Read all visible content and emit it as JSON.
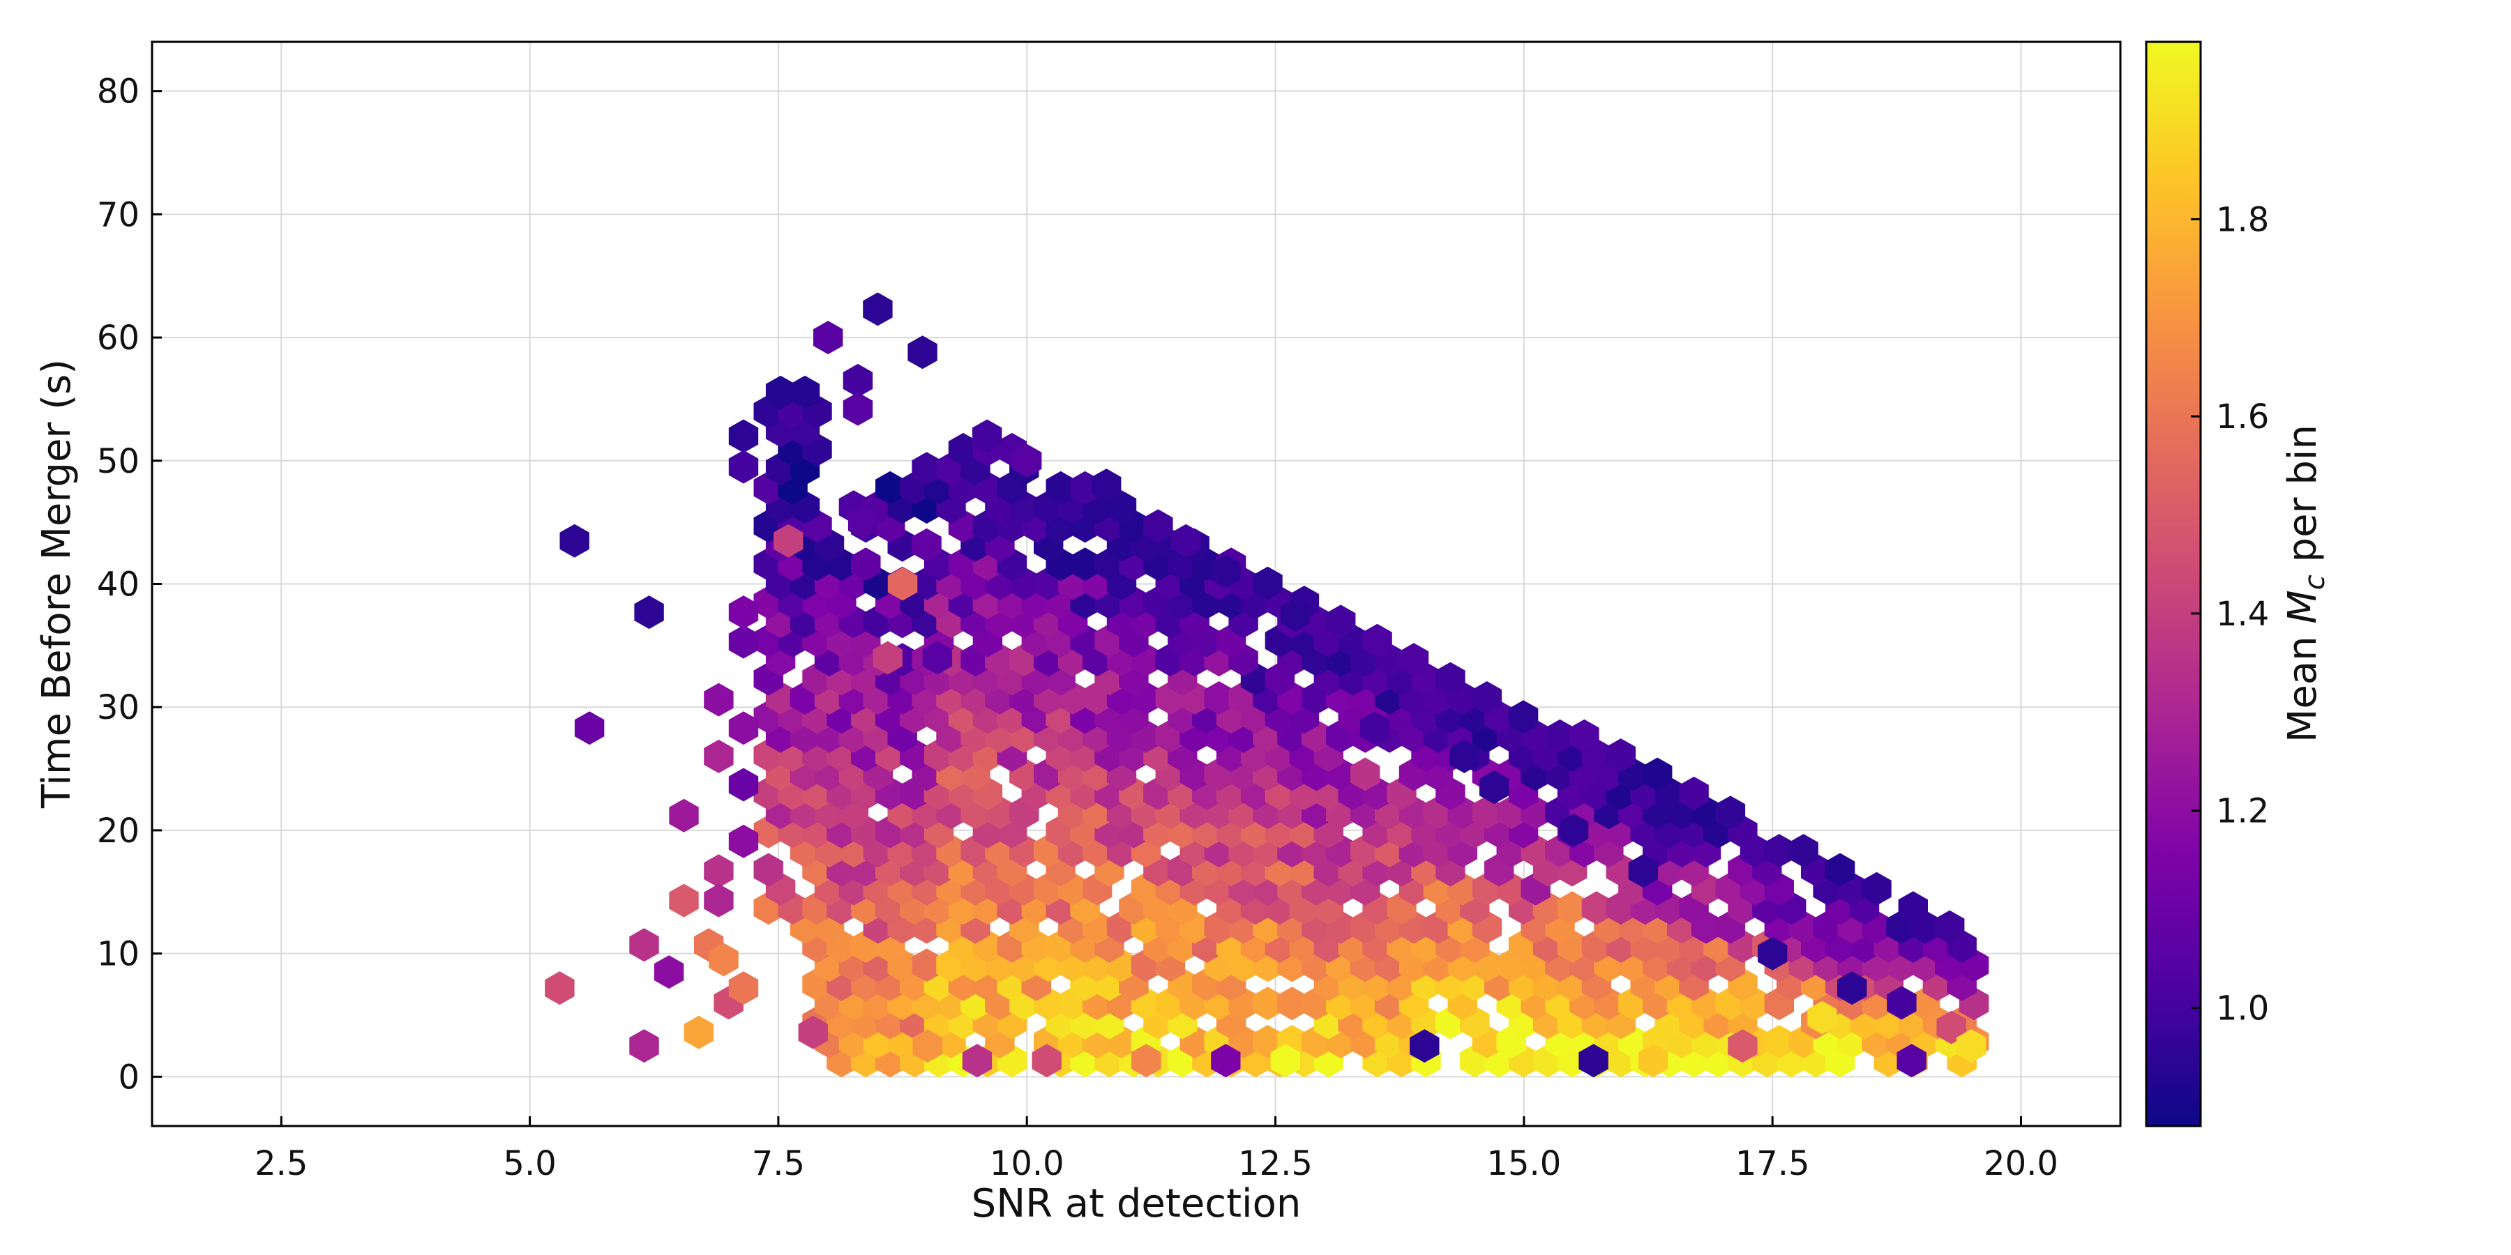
{
  "chart_data": {
    "type": "heatmap",
    "subtype": "hexbin",
    "title": "",
    "xlabel": "SNR at detection",
    "ylabel": "Time Before Merger (s)",
    "colorbar_label": "Mean M_c per bin",
    "colorbar_label_parts": {
      "before": "Mean ",
      "symbol": "M",
      "subscript": "c",
      "after": " per bin"
    },
    "xlim": [
      1.2,
      21.0
    ],
    "ylim": [
      -4.0,
      84.0
    ],
    "x_ticks": [
      2.5,
      5.0,
      7.5,
      10.0,
      12.5,
      15.0,
      17.5,
      20.0
    ],
    "x_tick_labels": [
      "2.5",
      "5.0",
      "7.5",
      "10.0",
      "12.5",
      "15.0",
      "17.5",
      "20.0"
    ],
    "y_ticks": [
      0,
      10,
      20,
      30,
      40,
      50,
      60,
      70,
      80
    ],
    "y_tick_labels": [
      "0",
      "10",
      "20",
      "30",
      "40",
      "50",
      "60",
      "70",
      "80"
    ],
    "colorbar_range": [
      0.88,
      1.98
    ],
    "colorbar_ticks": [
      1.0,
      1.2,
      1.4,
      1.6,
      1.8
    ],
    "colorbar_tick_labels": [
      "1.0",
      "1.2",
      "1.4",
      "1.6",
      "1.8"
    ],
    "colormap": "plasma",
    "grid": true,
    "hexbins": [
      [
        5.45,
        43.5,
        0.95
      ],
      [
        5.6,
        28.3,
        1.1
      ],
      [
        6.2,
        37.7,
        0.95
      ],
      [
        7.15,
        52.0,
        0.95
      ],
      [
        7.15,
        49.5,
        1.0
      ],
      [
        8.5,
        62.3,
        0.95
      ],
      [
        8.0,
        60.0,
        1.05
      ],
      [
        8.3,
        56.5,
        1.0
      ],
      [
        8.95,
        58.8,
        0.95
      ],
      [
        8.3,
        54.2,
        1.05
      ],
      [
        5.3,
        7.2,
        1.45
      ],
      [
        6.15,
        2.5,
        1.3
      ],
      [
        6.4,
        8.5,
        1.2
      ],
      [
        6.15,
        10.7,
        1.35
      ],
      [
        6.7,
        3.6,
        1.75
      ],
      [
        6.8,
        10.7,
        1.6
      ],
      [
        6.95,
        9.5,
        1.65
      ],
      [
        7.0,
        6.0,
        1.45
      ],
      [
        7.15,
        7.2,
        1.6
      ],
      [
        6.55,
        14.3,
        1.5
      ],
      [
        6.55,
        21.2,
        1.25
      ],
      [
        6.9,
        16.7,
        1.35
      ],
      [
        6.9,
        14.3,
        1.3
      ],
      [
        6.9,
        26.0,
        1.3
      ],
      [
        6.9,
        30.6,
        1.2
      ],
      [
        7.15,
        28.3,
        1.2
      ],
      [
        7.15,
        23.7,
        1.1
      ],
      [
        7.15,
        19.1,
        1.2
      ],
      [
        7.15,
        35.3,
        1.1
      ],
      [
        7.15,
        37.7,
        1.15
      ],
      [
        7.6,
        43.5,
        1.4
      ],
      [
        8.75,
        40.0,
        1.55
      ],
      [
        8.35,
        45.0,
        1.05
      ],
      [
        8.6,
        34.0,
        1.4
      ],
      [
        9.1,
        34.0,
        1.05
      ],
      [
        9.6,
        52.0,
        1.0
      ],
      [
        10.0,
        50.0,
        1.05
      ],
      [
        10.8,
        48.0,
        0.95
      ],
      [
        11.6,
        43.5,
        1.0
      ],
      [
        12.0,
        41.0,
        0.95
      ],
      [
        12.7,
        37.5,
        0.95
      ],
      [
        13.5,
        28.3,
        1.0
      ],
      [
        14.4,
        26.0,
        0.95
      ],
      [
        14.7,
        23.5,
        0.95
      ],
      [
        15.5,
        20.0,
        0.95
      ],
      [
        16.2,
        16.7,
        0.95
      ],
      [
        17.5,
        10.0,
        0.95
      ],
      [
        18.3,
        7.2,
        0.95
      ],
      [
        18.8,
        6.0,
        1.0
      ],
      [
        19.3,
        4.0,
        1.45
      ],
      [
        19.5,
        2.5,
        1.9
      ],
      [
        18.9,
        1.3,
        1.05
      ],
      [
        12.6,
        1.3,
        1.98
      ],
      [
        14.0,
        2.5,
        0.95
      ],
      [
        15.7,
        1.3,
        0.95
      ],
      [
        16.3,
        1.3,
        1.85
      ],
      [
        18.0,
        4.8,
        1.9
      ],
      [
        17.2,
        2.5,
        1.5
      ],
      [
        9.0,
        2.5,
        1.7
      ],
      [
        9.5,
        1.3,
        1.35
      ],
      [
        10.2,
        1.3,
        1.45
      ],
      [
        11.2,
        1.3,
        1.65
      ],
      [
        12.0,
        1.3,
        1.15
      ],
      [
        7.85,
        3.6,
        1.4
      ]
    ]
  }
}
